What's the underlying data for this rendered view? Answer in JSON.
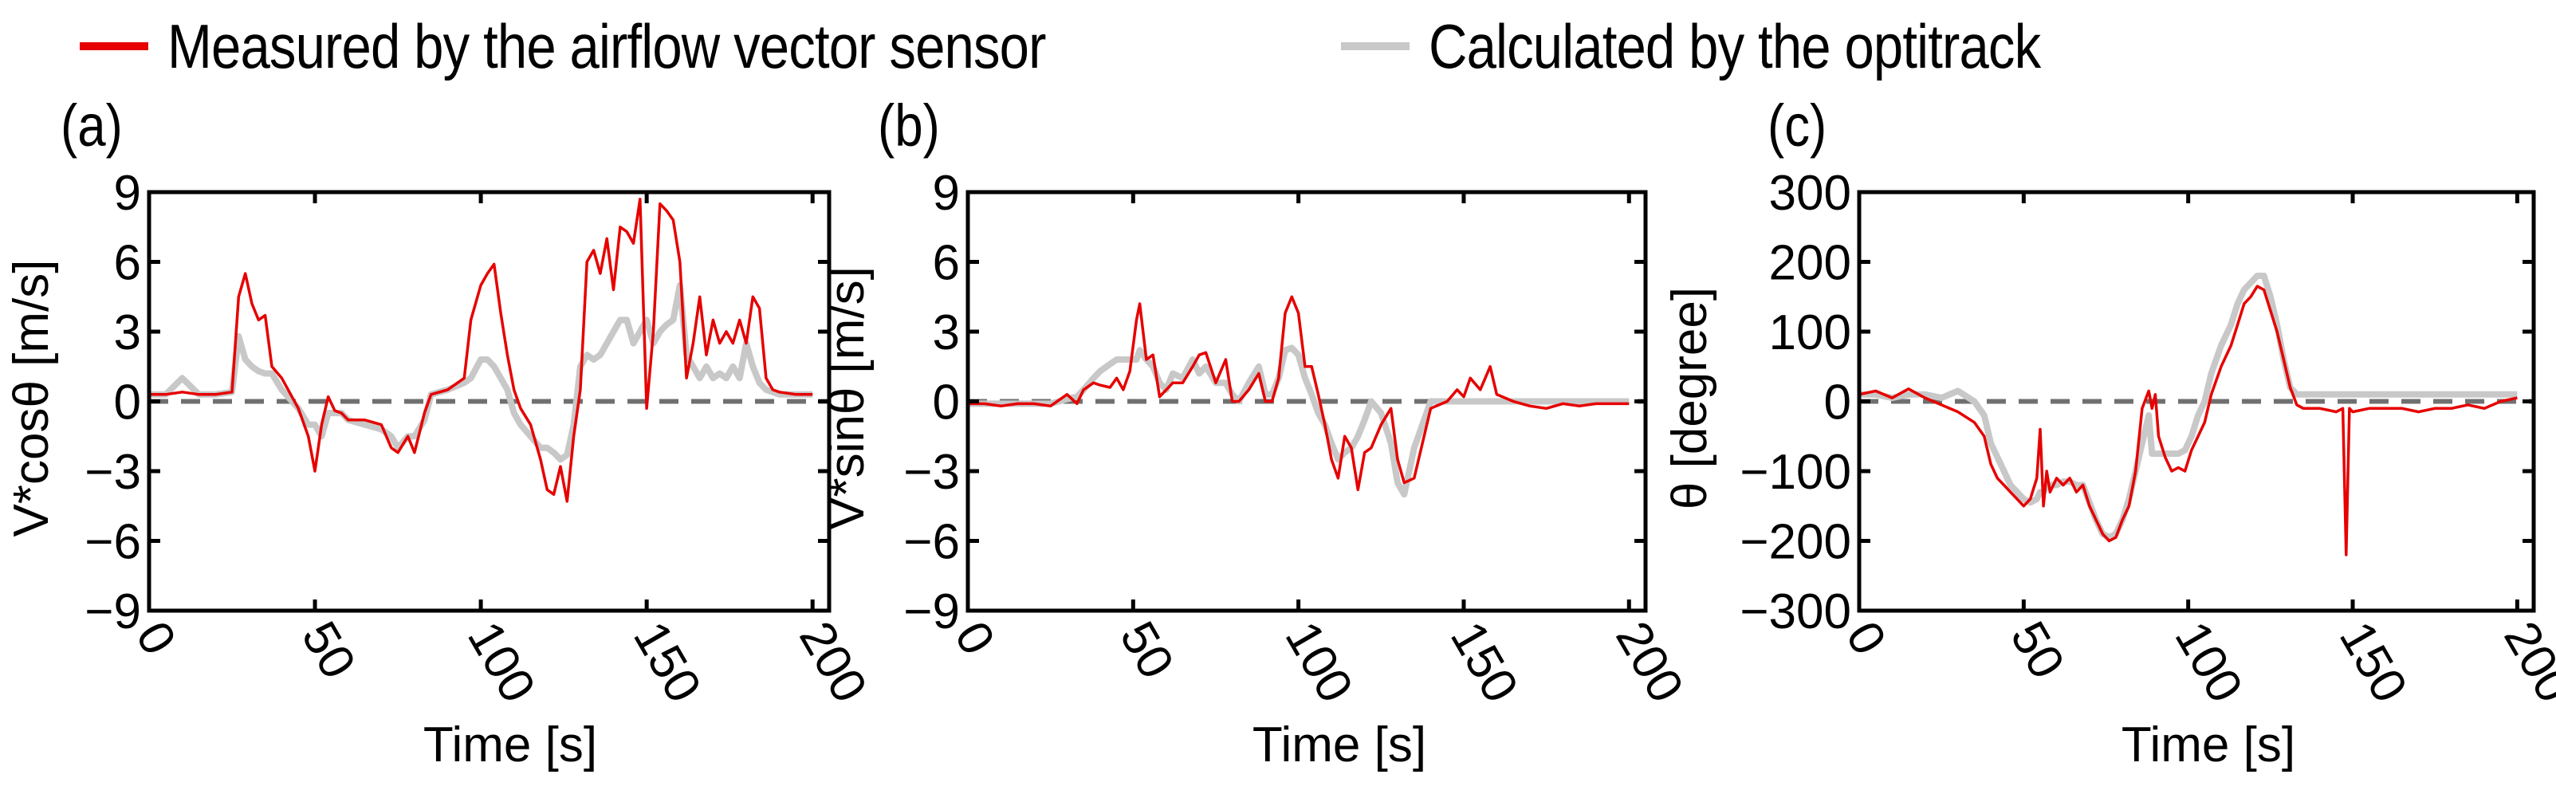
{
  "legend": {
    "items": [
      {
        "label": "Measured by the airflow vector sensor",
        "color": "#e60000"
      },
      {
        "label": "Calculated by the optitrack",
        "color": "#c8c8c8"
      }
    ]
  },
  "panels": [
    {
      "label": "(a)",
      "ylabel": "V*cosθ [m/s]",
      "xlabel": "Time [s]"
    },
    {
      "label": "(b)",
      "ylabel": "V*sinθ [m/s]",
      "xlabel": "Time [s]"
    },
    {
      "label": "(c)",
      "ylabel": "θ [degree]",
      "xlabel": "Time [s]"
    }
  ],
  "chart_data": [
    {
      "type": "line",
      "title": "(a)",
      "xlabel": "Time [s]",
      "ylabel": "V*cosθ [m/s]",
      "xlim": [
        0,
        205
      ],
      "ylim": [
        -9,
        9
      ],
      "xticks": [
        0,
        50,
        100,
        150,
        200
      ],
      "yticks": [
        -9,
        -6,
        -3,
        0,
        3,
        6,
        9
      ],
      "reference_line": {
        "y": 0,
        "style": "dashed",
        "color": "#707070"
      },
      "x": [
        0,
        5,
        10,
        15,
        20,
        25,
        27,
        29,
        31,
        33,
        35,
        37,
        40,
        45,
        48,
        50,
        52,
        54,
        56,
        58,
        60,
        65,
        70,
        73,
        75,
        78,
        80,
        83,
        85,
        90,
        95,
        97,
        100,
        102,
        104,
        106,
        108,
        110,
        112,
        115,
        118,
        120,
        122,
        124,
        126,
        128,
        130,
        132,
        134,
        136,
        138,
        140,
        142,
        144,
        146,
        148,
        150,
        152,
        154,
        156,
        158,
        160,
        162,
        164,
        166,
        168,
        170,
        172,
        174,
        176,
        178,
        180,
        182,
        184,
        186,
        188,
        190,
        195,
        200
      ],
      "series": [
        {
          "name": "Measured by the airflow vector sensor",
          "color": "#e60000",
          "values": [
            0.3,
            0.3,
            0.4,
            0.3,
            0.3,
            0.4,
            4.5,
            5.5,
            4.2,
            3.5,
            3.7,
            1.5,
            1.0,
            -0.3,
            -1.5,
            -3.0,
            -1.0,
            0.2,
            -0.4,
            -0.5,
            -0.8,
            -0.8,
            -1.0,
            -2.0,
            -2.2,
            -1.5,
            -2.2,
            -0.5,
            0.3,
            0.5,
            1.0,
            3.5,
            5.0,
            5.5,
            5.9,
            3.8,
            2.0,
            0.5,
            -0.3,
            -1.0,
            -2.5,
            -3.8,
            -4.0,
            -2.8,
            -4.3,
            -1.5,
            0.5,
            6.0,
            6.5,
            5.5,
            7.0,
            4.8,
            7.5,
            7.3,
            6.8,
            8.7,
            -0.3,
            3.0,
            8.5,
            8.2,
            7.8,
            6.0,
            1.0,
            2.5,
            4.5,
            2.0,
            3.5,
            2.5,
            3.0,
            2.5,
            3.5,
            2.5,
            4.5,
            4.0,
            1.0,
            0.5,
            0.4,
            0.3,
            0.3
          ]
        },
        {
          "name": "Calculated by the optitrack",
          "color": "#c8c8c8",
          "values": [
            0.3,
            0.3,
            1.0,
            0.3,
            0.3,
            0.4,
            2.8,
            1.8,
            1.5,
            1.3,
            1.2,
            1.2,
            0.5,
            -0.3,
            -1.0,
            -1.0,
            -1.5,
            -0.5,
            -0.5,
            -0.5,
            -0.8,
            -1.0,
            -1.2,
            -1.5,
            -2.0,
            -1.5,
            -1.5,
            -0.8,
            0.3,
            0.5,
            0.8,
            1.0,
            1.8,
            1.8,
            1.5,
            1.0,
            0.5,
            -0.5,
            -1.0,
            -1.5,
            -2.0,
            -2.0,
            -2.2,
            -2.5,
            -2.3,
            -1.0,
            1.5,
            2.0,
            1.8,
            2.0,
            2.5,
            3.0,
            3.5,
            3.5,
            2.5,
            3.0,
            3.5,
            2.5,
            3.0,
            3.3,
            3.5,
            5.0,
            2.0,
            1.5,
            1.0,
            1.5,
            1.0,
            1.2,
            1.0,
            1.5,
            1.0,
            2.5,
            1.5,
            0.8,
            0.5,
            0.4,
            0.3,
            0.3,
            0.3
          ]
        }
      ]
    },
    {
      "type": "line",
      "title": "(b)",
      "xlabel": "Time [s]",
      "ylabel": "V*sinθ [m/s]",
      "xlim": [
        0,
        205
      ],
      "ylim": [
        -9,
        9
      ],
      "xticks": [
        0,
        50,
        100,
        150,
        200
      ],
      "yticks": [
        -9,
        -6,
        -3,
        0,
        3,
        6,
        9
      ],
      "reference_line": {
        "y": 0,
        "style": "dashed",
        "color": "#707070"
      },
      "x": [
        0,
        5,
        10,
        15,
        20,
        25,
        30,
        33,
        35,
        38,
        40,
        43,
        45,
        47,
        49,
        51,
        52,
        54,
        56,
        58,
        60,
        62,
        65,
        68,
        70,
        72,
        75,
        78,
        80,
        82,
        85,
        88,
        90,
        92,
        94,
        96,
        98,
        100,
        102,
        104,
        106,
        108,
        110,
        112,
        114,
        116,
        118,
        120,
        122,
        125,
        128,
        130,
        132,
        135,
        140,
        145,
        148,
        150,
        152,
        155,
        158,
        160,
        165,
        170,
        175,
        180,
        185,
        190,
        195,
        200
      ],
      "series": [
        {
          "name": "Measured by the airflow vector sensor",
          "color": "#e60000",
          "values": [
            -0.1,
            -0.1,
            -0.2,
            -0.1,
            -0.1,
            -0.2,
            0.3,
            -0.1,
            0.5,
            0.8,
            0.7,
            0.6,
            1.0,
            0.5,
            1.3,
            3.5,
            4.2,
            1.8,
            2.0,
            0.2,
            0.5,
            0.8,
            0.8,
            1.5,
            2.0,
            2.1,
            0.8,
            1.8,
            0.0,
            0.0,
            0.5,
            1.2,
            0.0,
            0.0,
            1.0,
            3.8,
            4.5,
            3.8,
            1.5,
            1.5,
            0.3,
            -1.0,
            -2.5,
            -3.3,
            -1.5,
            -2.0,
            -3.8,
            -2.2,
            -2.0,
            -1.0,
            -0.3,
            -2.5,
            -3.5,
            -3.3,
            -0.3,
            0.0,
            0.5,
            0.2,
            1.0,
            0.5,
            1.5,
            0.3,
            0.0,
            -0.2,
            -0.3,
            -0.1,
            -0.2,
            -0.1,
            -0.1,
            -0.1
          ]
        },
        {
          "name": "Calculated by the optitrack",
          "color": "#c8c8c8",
          "values": [
            -0.1,
            -0.1,
            -0.1,
            -0.1,
            -0.1,
            -0.1,
            0.1,
            0.2,
            0.5,
            1.0,
            1.3,
            1.6,
            1.8,
            1.8,
            1.8,
            1.8,
            2.2,
            1.8,
            1.5,
            0.8,
            0.5,
            1.2,
            1.0,
            1.8,
            1.2,
            1.5,
            0.8,
            0.8,
            0.3,
            0.0,
            0.8,
            1.5,
            0.3,
            0.3,
            1.0,
            2.2,
            2.3,
            2.0,
            1.0,
            0.3,
            -0.5,
            -1.0,
            -1.8,
            -2.5,
            -2.2,
            -2.0,
            -1.5,
            -0.8,
            0.0,
            -0.5,
            -1.8,
            -3.5,
            -4.0,
            -2.0,
            0.0,
            0.0,
            0.0,
            0.0,
            0.0,
            0.0,
            0.0,
            0.0,
            0.0,
            0.0,
            0.0,
            0.0,
            0.0,
            0.0,
            0.0,
            0.0
          ]
        }
      ]
    },
    {
      "type": "line",
      "title": "(c)",
      "xlabel": "Time [s]",
      "ylabel": "θ [degree]",
      "xlim": [
        0,
        205
      ],
      "ylim": [
        -300,
        300
      ],
      "xticks": [
        0,
        50,
        100,
        150,
        200
      ],
      "yticks": [
        -300,
        -200,
        -100,
        0,
        100,
        200,
        300
      ],
      "reference_line": {
        "y": 0,
        "style": "dashed",
        "color": "#707070"
      },
      "x": [
        0,
        5,
        10,
        15,
        20,
        25,
        30,
        35,
        38,
        40,
        42,
        44,
        46,
        48,
        50,
        52,
        54,
        55,
        56,
        57,
        58,
        60,
        62,
        64,
        66,
        68,
        70,
        72,
        74,
        76,
        78,
        80,
        82,
        84,
        86,
        88,
        89,
        90,
        91,
        93,
        95,
        97,
        99,
        101,
        103,
        105,
        107,
        110,
        113,
        115,
        117,
        119,
        121,
        123,
        125,
        127,
        129,
        131,
        133,
        135,
        140,
        145,
        147,
        148,
        149,
        150,
        155,
        160,
        165,
        170,
        175,
        180,
        185,
        190,
        195,
        200
      ],
      "series": [
        {
          "name": "Measured by the airflow vector sensor",
          "color": "#e60000",
          "values": [
            10,
            15,
            5,
            18,
            5,
            -5,
            -15,
            -30,
            -50,
            -90,
            -110,
            -120,
            -130,
            -140,
            -150,
            -140,
            -110,
            -40,
            -150,
            -100,
            -130,
            -110,
            -120,
            -110,
            -130,
            -120,
            -150,
            -170,
            -190,
            -200,
            -195,
            -170,
            -150,
            -100,
            -10,
            15,
            -10,
            10,
            -50,
            -80,
            -100,
            -95,
            -100,
            -70,
            -50,
            -30,
            10,
            50,
            80,
            110,
            140,
            150,
            165,
            160,
            130,
            100,
            60,
            20,
            -5,
            -10,
            -10,
            -15,
            -10,
            -220,
            -10,
            -15,
            -10,
            -10,
            -10,
            -15,
            -10,
            -10,
            -5,
            -10,
            0,
            5
          ]
        },
        {
          "name": "Calculated by the optitrack",
          "color": "#c8c8c8",
          "values": [
            10,
            10,
            5,
            10,
            10,
            5,
            15,
            0,
            -20,
            -60,
            -80,
            -100,
            -120,
            -130,
            -140,
            -145,
            -140,
            -130,
            -130,
            -120,
            -120,
            -120,
            -115,
            -115,
            -120,
            -120,
            -145,
            -170,
            -190,
            -195,
            -190,
            -170,
            -140,
            -100,
            -60,
            -20,
            -75,
            -75,
            -75,
            -75,
            -75,
            -75,
            -70,
            -50,
            -20,
            0,
            40,
            80,
            110,
            140,
            160,
            170,
            180,
            180,
            150,
            110,
            60,
            20,
            10,
            10,
            10,
            10,
            10,
            10,
            10,
            10,
            10,
            10,
            10,
            10,
            10,
            10,
            10,
            10,
            10,
            10
          ]
        }
      ]
    }
  ]
}
